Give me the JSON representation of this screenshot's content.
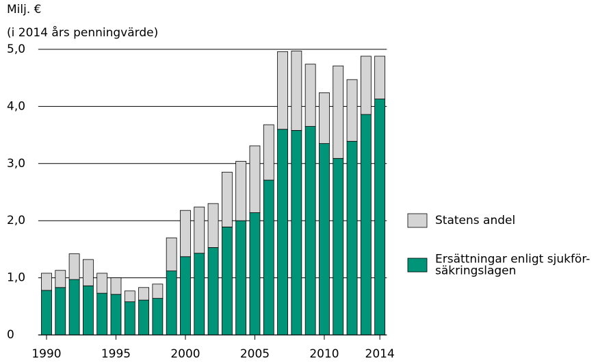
{
  "chart_data": {
    "type": "stacked_bar",
    "y_label": [
      "Milj. €",
      "(i 2014 års penningvärde)"
    ],
    "categories": [
      "1990",
      null,
      null,
      null,
      null,
      "1995",
      null,
      null,
      null,
      null,
      "2000",
      null,
      null,
      null,
      null,
      "2005",
      null,
      null,
      null,
      null,
      "2010",
      null,
      null,
      null,
      "2014"
    ],
    "series": [
      {
        "name": "Ersättningar enligt sjukför-\nsäkringslagen",
        "color": "#009579",
        "values": [
          0.78,
          0.83,
          0.97,
          0.86,
          0.73,
          0.71,
          0.58,
          0.61,
          0.64,
          1.12,
          1.37,
          1.43,
          1.53,
          1.89,
          2.0,
          2.14,
          2.71,
          3.6,
          3.58,
          3.65,
          3.35,
          3.09,
          3.39,
          3.86,
          4.13
        ]
      },
      {
        "name": "Statens andel",
        "color": "#d4d4d4",
        "values": [
          0.3,
          0.3,
          0.45,
          0.46,
          0.35,
          0.29,
          0.19,
          0.22,
          0.25,
          0.58,
          0.81,
          0.81,
          0.77,
          0.96,
          1.04,
          1.17,
          0.97,
          1.36,
          1.39,
          1.09,
          0.89,
          1.62,
          1.08,
          1.02,
          0.75
        ]
      }
    ],
    "ylim": [
      0,
      5
    ],
    "yticks": [
      0,
      {
        "value": 1,
        "label": "1,0"
      },
      {
        "value": 2,
        "label": "2,0"
      },
      {
        "value": 3,
        "label": "3,0"
      },
      {
        "value": 4,
        "label": "4,0"
      },
      {
        "value": 5,
        "label": "5,0"
      }
    ],
    "grid": true
  }
}
